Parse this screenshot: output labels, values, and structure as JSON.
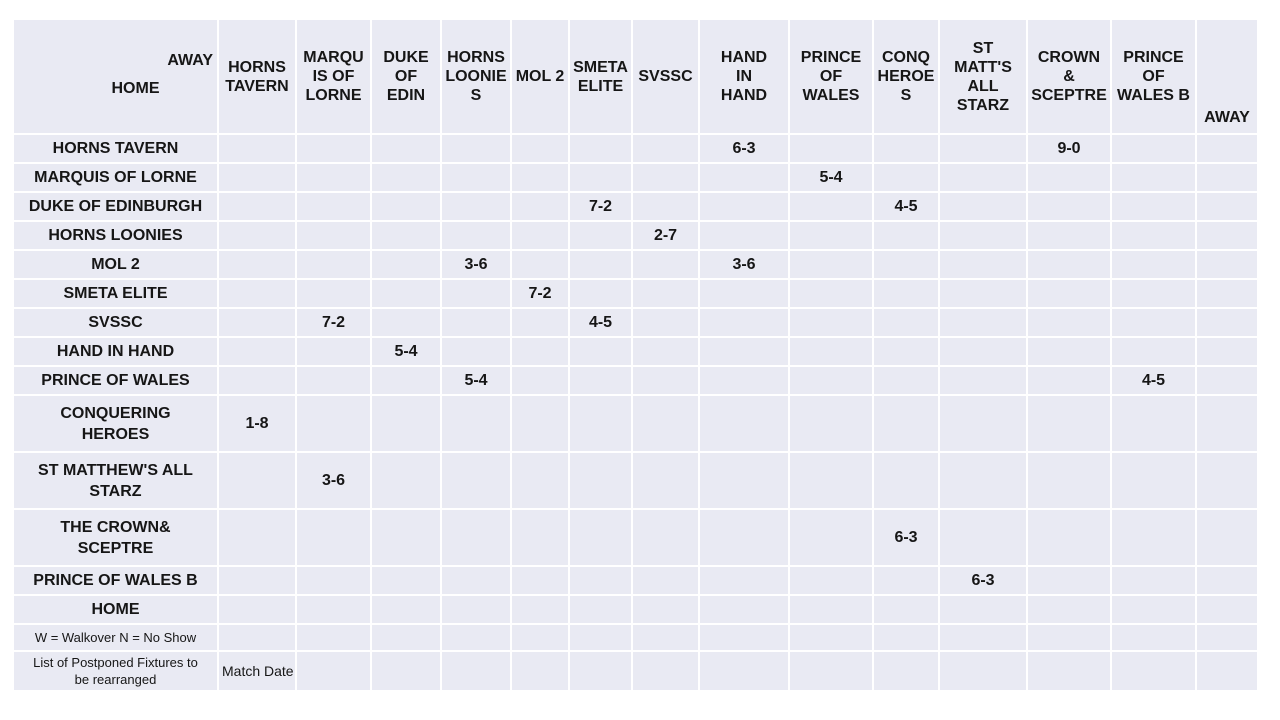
{
  "corner": {
    "away": "AWAY",
    "home": "HOME"
  },
  "columns": [
    "HORNS\nTAVERN",
    "MARQU\nIS OF\nLORNE",
    "DUKE\nOF\nEDIN",
    "HORNS\nLOONIE\nS",
    "MOL 2",
    "SMETA\nELITE",
    "SVSSC",
    "HAND\nIN\nHAND",
    "PRINCE\nOF\nWALES",
    "CONQ\nHEROE\nS",
    "ST\nMATT'S\nALL\nSTARZ",
    "CROWN\n&\nSCEPTRE",
    "PRINCE\nOF\nWALES B",
    "AWAY"
  ],
  "rows": [
    {
      "label": "HORNS TAVERN",
      "kind": "team",
      "scores": {
        "7": "6-3",
        "11": "9-0"
      }
    },
    {
      "label": "MARQUIS OF LORNE",
      "kind": "team",
      "scores": {
        "8": "5-4"
      }
    },
    {
      "label": "DUKE OF EDINBURGH",
      "kind": "team",
      "scores": {
        "5": "7-2",
        "9": "4-5"
      }
    },
    {
      "label": "HORNS LOONIES",
      "kind": "team",
      "scores": {
        "6": "2-7"
      }
    },
    {
      "label": "MOL 2",
      "kind": "team",
      "scores": {
        "3": "3-6",
        "7": "3-6"
      }
    },
    {
      "label": "SMETA ELITE",
      "kind": "team",
      "scores": {
        "4": "7-2"
      }
    },
    {
      "label": "SVSSC",
      "kind": "team",
      "scores": {
        "1": "7-2",
        "5": "4-5"
      }
    },
    {
      "label": "HAND IN HAND",
      "kind": "team",
      "scores": {
        "2": "5-4"
      }
    },
    {
      "label": "PRINCE OF WALES",
      "kind": "team",
      "scores": {
        "3": "5-4",
        "12": "4-5"
      }
    },
    {
      "label": "CONQUERING\nHEROES",
      "kind": "team-tall",
      "scores": {
        "0": "1-8"
      }
    },
    {
      "label": "ST MATTHEW'S ALL\nSTARZ",
      "kind": "team-tall",
      "scores": {
        "1": "3-6"
      }
    },
    {
      "label": "THE CROWN&\nSCEPTRE",
      "kind": "team-tall",
      "scores": {
        "9": "6-3"
      }
    },
    {
      "label": "PRINCE OF WALES B",
      "kind": "team",
      "scores": {
        "10": "6-3"
      }
    },
    {
      "label": "HOME",
      "kind": "team",
      "scores": {}
    },
    {
      "label": "W = Walkover N = No Show",
      "kind": "note",
      "scores": {}
    },
    {
      "label": "List of Postponed Fixtures to\nbe rearranged",
      "kind": "note-tall",
      "scores": {
        "0": "Match Date"
      }
    }
  ],
  "colors": {
    "cell_bg": "#e9eaf3",
    "gridline": "#ffffff",
    "text": "#161616"
  }
}
